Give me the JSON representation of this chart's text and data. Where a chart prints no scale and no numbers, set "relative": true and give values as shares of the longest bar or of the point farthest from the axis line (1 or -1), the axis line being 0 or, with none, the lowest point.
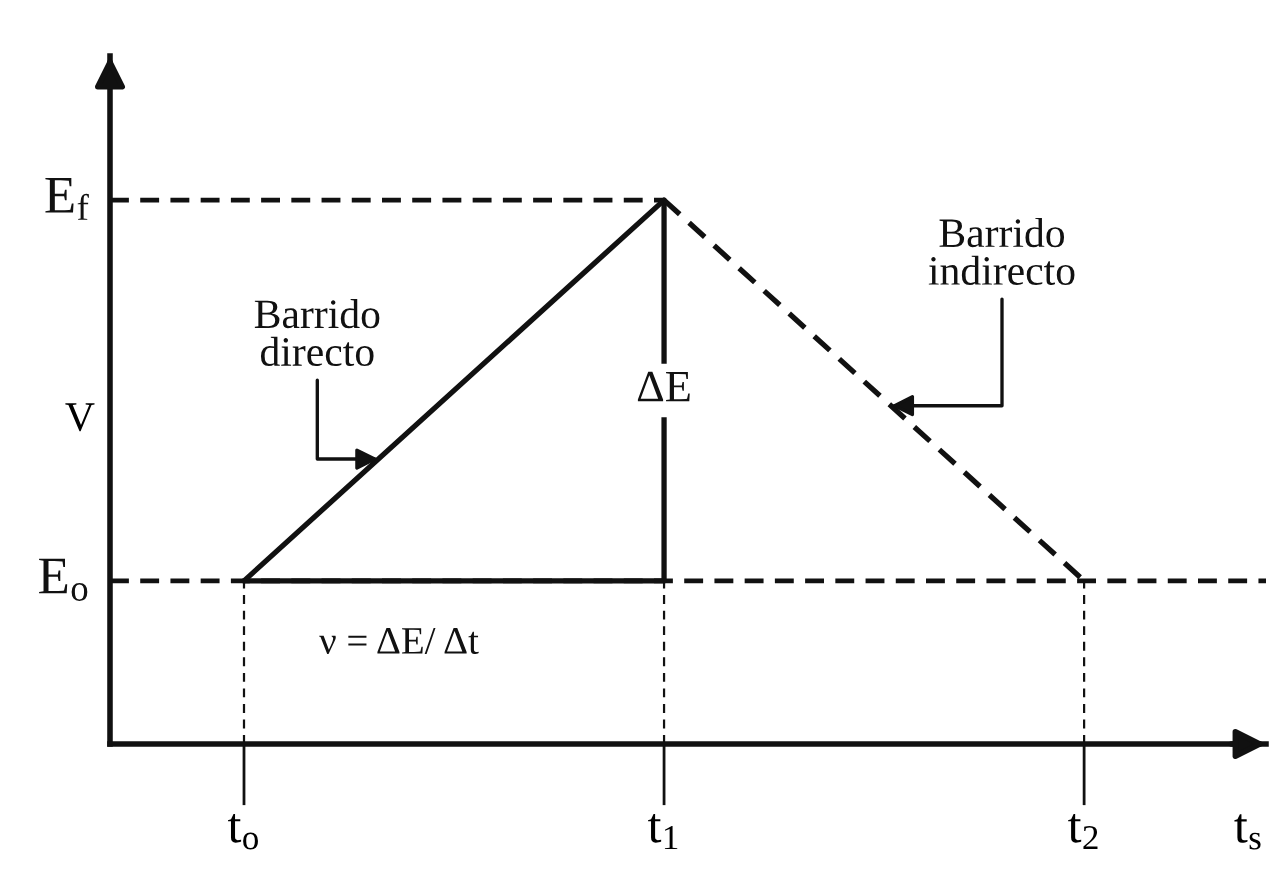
{
  "chart_data": {
    "type": "line",
    "relative": true,
    "ylabel": "V",
    "xlabel": "t$_{s}$",
    "categories": [
      "t$_{o}$",
      "t$_{1}$",
      "t$_{2}$"
    ],
    "series": [
      {
        "name": "Barrido\ndirecto",
        "color": "#111111",
        "values": [
          0.3,
          1,
          null
        ],
        "line_style": "solid"
      },
      {
        "name": "Barrido\nindirecto",
        "color": "#111111",
        "values": [
          null,
          1,
          0.3
        ],
        "line_style": "dashed"
      },
      {
        "color": "#111111",
        "values": [
          0.3,
          0.3,
          null
        ],
        "line_style": "solid"
      }
    ],
    "ref_lines": [
      {
        "axis": "y",
        "value": 1,
        "label": "E$_{f}$",
        "line_style": "dashed",
        "color": "#111111"
      },
      {
        "axis": "y",
        "value": 0.3,
        "label": "E$_{o}$",
        "line_style": "dashed",
        "color": "#111111"
      },
      {
        "axis": "x",
        "value": "t$_{o}$",
        "line_style": "dashed",
        "color": "#111111"
      },
      {
        "axis": "x",
        "value": "t$_{1}$",
        "line_style": "dashed",
        "color": "#111111"
      },
      {
        "axis": "x",
        "value": "t$_{1}$",
        "line_style": "solid",
        "label": "ΔE",
        "color": "#111111"
      },
      {
        "axis": "x",
        "value": "t$_{2}$",
        "line_style": "dashed",
        "color": "#111111"
      }
    ],
    "annotations": [
      "ν = ΔE/ Δt"
    ]
  }
}
